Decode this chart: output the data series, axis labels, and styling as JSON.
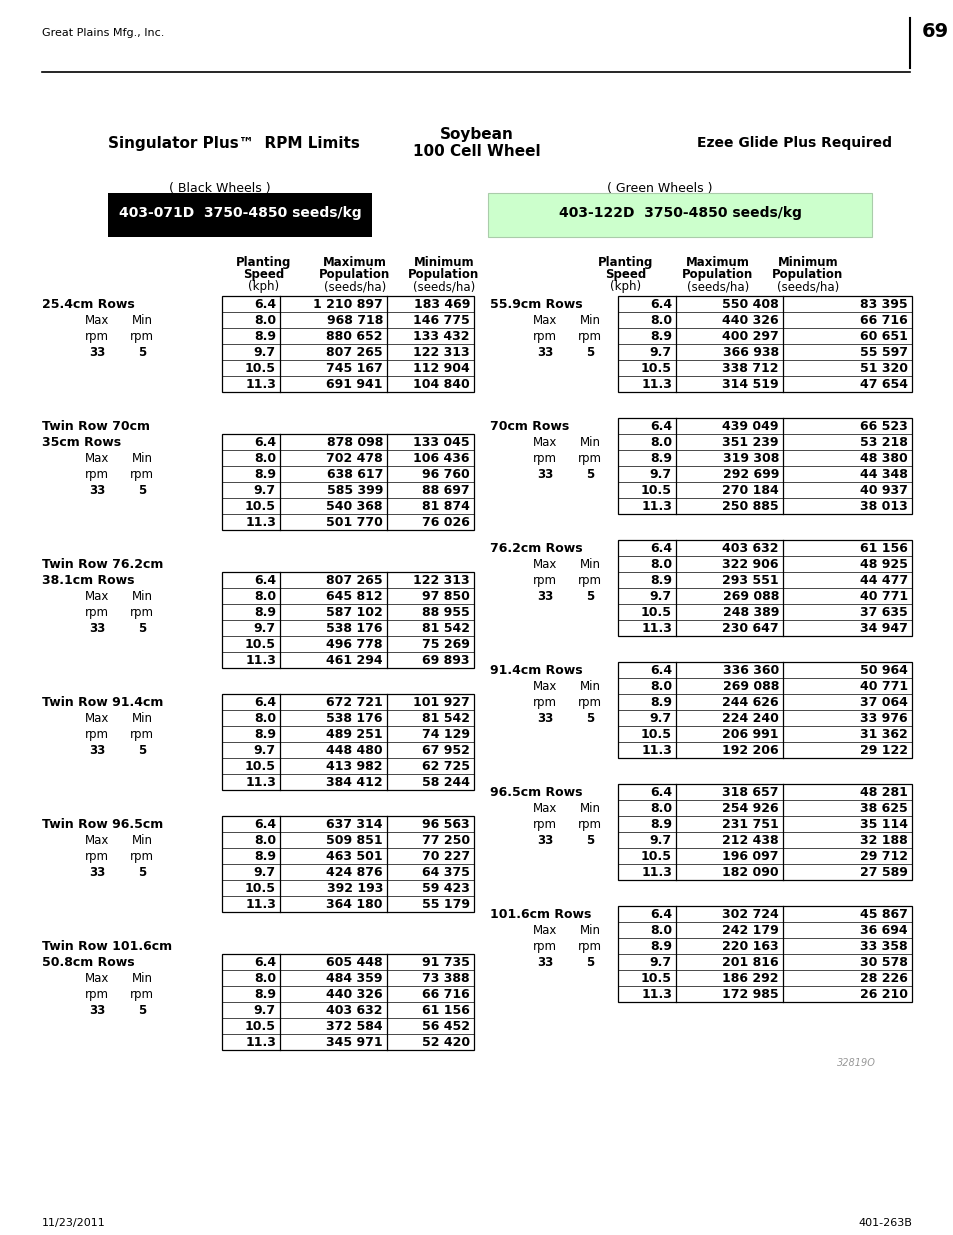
{
  "page_num": "69",
  "company": "Great Plains Mfg., Inc.",
  "title_left": "Singulator Plus™  RPM Limits",
  "title_center1": "Soybean",
  "title_center2": "100 Cell Wheel",
  "title_right": "Ezee Glide Plus Required",
  "black_label": "( Black Wheels )",
  "green_label": "( Green Wheels )",
  "black_part": "403-071D  3750-4850 seeds/kg",
  "green_part": "403-122D  3750-4850 seeds/kg",
  "footer_left": "11/23/2011",
  "footer_right": "401-263B",
  "watermark": "32819O",
  "sections_left": [
    {
      "title_line1": "25.4cm Rows",
      "title_line2": "",
      "rows": [
        [
          "6.4",
          "1 210 897",
          "183 469"
        ],
        [
          "8.0",
          "968 718",
          "146 775"
        ],
        [
          "8.9",
          "880 652",
          "133 432"
        ],
        [
          "9.7",
          "807 265",
          "122 313"
        ],
        [
          "10.5",
          "745 167",
          "112 904"
        ],
        [
          "11.3",
          "691 941",
          "104 840"
        ]
      ]
    },
    {
      "title_line1": "Twin Row 70cm",
      "title_line2": "35cm Rows",
      "rows": [
        [
          "6.4",
          "878 098",
          "133 045"
        ],
        [
          "8.0",
          "702 478",
          "106 436"
        ],
        [
          "8.9",
          "638 617",
          "96 760"
        ],
        [
          "9.7",
          "585 399",
          "88 697"
        ],
        [
          "10.5",
          "540 368",
          "81 874"
        ],
        [
          "11.3",
          "501 770",
          "76 026"
        ]
      ]
    },
    {
      "title_line1": "Twin Row 76.2cm",
      "title_line2": "38.1cm Rows",
      "rows": [
        [
          "6.4",
          "807 265",
          "122 313"
        ],
        [
          "8.0",
          "645 812",
          "97 850"
        ],
        [
          "8.9",
          "587 102",
          "88 955"
        ],
        [
          "9.7",
          "538 176",
          "81 542"
        ],
        [
          "10.5",
          "496 778",
          "75 269"
        ],
        [
          "11.3",
          "461 294",
          "69 893"
        ]
      ]
    },
    {
      "title_line1": "Twin Row 91.4cm",
      "title_line2": "",
      "rows": [
        [
          "6.4",
          "672 721",
          "101 927"
        ],
        [
          "8.0",
          "538 176",
          "81 542"
        ],
        [
          "8.9",
          "489 251",
          "74 129"
        ],
        [
          "9.7",
          "448 480",
          "67 952"
        ],
        [
          "10.5",
          "413 982",
          "62 725"
        ],
        [
          "11.3",
          "384 412",
          "58 244"
        ]
      ]
    },
    {
      "title_line1": "Twin Row 96.5cm",
      "title_line2": "",
      "rows": [
        [
          "6.4",
          "637 314",
          "96 563"
        ],
        [
          "8.0",
          "509 851",
          "77 250"
        ],
        [
          "8.9",
          "463 501",
          "70 227"
        ],
        [
          "9.7",
          "424 876",
          "64 375"
        ],
        [
          "10.5",
          "392 193",
          "59 423"
        ],
        [
          "11.3",
          "364 180",
          "55 179"
        ]
      ]
    },
    {
      "title_line1": "Twin Row 101.6cm",
      "title_line2": "50.8cm Rows",
      "rows": [
        [
          "6.4",
          "605 448",
          "91 735"
        ],
        [
          "8.0",
          "484 359",
          "73 388"
        ],
        [
          "8.9",
          "440 326",
          "66 716"
        ],
        [
          "9.7",
          "403 632",
          "61 156"
        ],
        [
          "10.5",
          "372 584",
          "56 452"
        ],
        [
          "11.3",
          "345 971",
          "52 420"
        ]
      ]
    }
  ],
  "sections_right": [
    {
      "title_line1": "55.9cm Rows",
      "title_line2": "",
      "rows": [
        [
          "6.4",
          "550 408",
          "83 395"
        ],
        [
          "8.0",
          "440 326",
          "66 716"
        ],
        [
          "8.9",
          "400 297",
          "60 651"
        ],
        [
          "9.7",
          "366 938",
          "55 597"
        ],
        [
          "10.5",
          "338 712",
          "51 320"
        ],
        [
          "11.3",
          "314 519",
          "47 654"
        ]
      ]
    },
    {
      "title_line1": "70cm Rows",
      "title_line2": "",
      "rows": [
        [
          "6.4",
          "439 049",
          "66 523"
        ],
        [
          "8.0",
          "351 239",
          "53 218"
        ],
        [
          "8.9",
          "319 308",
          "48 380"
        ],
        [
          "9.7",
          "292 699",
          "44 348"
        ],
        [
          "10.5",
          "270 184",
          "40 937"
        ],
        [
          "11.3",
          "250 885",
          "38 013"
        ]
      ]
    },
    {
      "title_line1": "76.2cm Rows",
      "title_line2": "",
      "rows": [
        [
          "6.4",
          "403 632",
          "61 156"
        ],
        [
          "8.0",
          "322 906",
          "48 925"
        ],
        [
          "8.9",
          "293 551",
          "44 477"
        ],
        [
          "9.7",
          "269 088",
          "40 771"
        ],
        [
          "10.5",
          "248 389",
          "37 635"
        ],
        [
          "11.3",
          "230 647",
          "34 947"
        ]
      ]
    },
    {
      "title_line1": "91.4cm Rows",
      "title_line2": "",
      "rows": [
        [
          "6.4",
          "336 360",
          "50 964"
        ],
        [
          "8.0",
          "269 088",
          "40 771"
        ],
        [
          "8.9",
          "244 626",
          "37 064"
        ],
        [
          "9.7",
          "224 240",
          "33 976"
        ],
        [
          "10.5",
          "206 991",
          "31 362"
        ],
        [
          "11.3",
          "192 206",
          "29 122"
        ]
      ]
    },
    {
      "title_line1": "96.5cm Rows",
      "title_line2": "",
      "rows": [
        [
          "6.4",
          "318 657",
          "48 281"
        ],
        [
          "8.0",
          "254 926",
          "38 625"
        ],
        [
          "8.9",
          "231 751",
          "35 114"
        ],
        [
          "9.7",
          "212 438",
          "32 188"
        ],
        [
          "10.5",
          "196 097",
          "29 712"
        ],
        [
          "11.3",
          "182 090",
          "27 589"
        ]
      ]
    },
    {
      "title_line1": "101.6cm Rows",
      "title_line2": "",
      "rows": [
        [
          "6.4",
          "302 724",
          "45 867"
        ],
        [
          "8.0",
          "242 179",
          "36 694"
        ],
        [
          "8.9",
          "220 163",
          "33 358"
        ],
        [
          "9.7",
          "201 816",
          "30 578"
        ],
        [
          "10.5",
          "186 292",
          "28 226"
        ],
        [
          "11.3",
          "172 985",
          "26 210"
        ]
      ]
    }
  ]
}
